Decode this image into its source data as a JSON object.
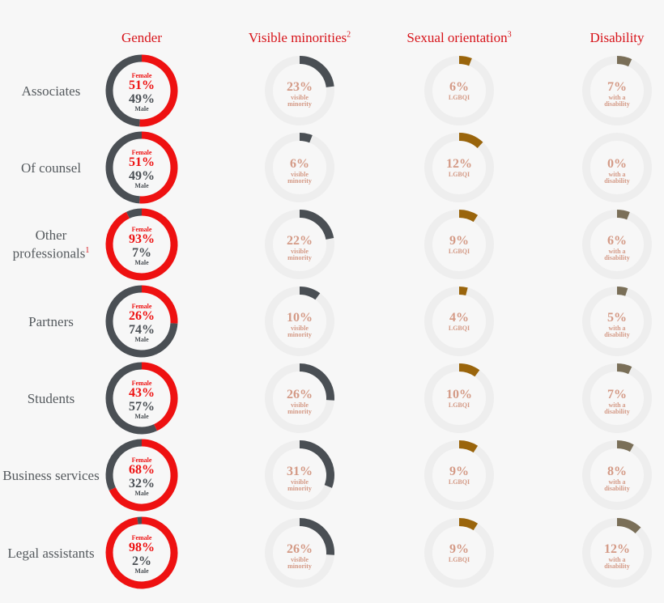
{
  "chart_data": [
    {
      "type": "donut",
      "title": "Gender",
      "title_note": null,
      "ylim": [
        0,
        100
      ],
      "categories": [
        "Associates",
        "Of counsel",
        "Other professionals",
        "Partners",
        "Students",
        "Business services",
        "Legal assistants"
      ],
      "category_notes": [
        null,
        null,
        "1",
        null,
        null,
        null,
        null
      ],
      "series": [
        {
          "name": "Female",
          "color": "#ee1111",
          "values": [
            51,
            51,
            93,
            26,
            43,
            68,
            98
          ],
          "value_labels": [
            "51%",
            "51%",
            "93%",
            "26%",
            "43%",
            "68%",
            "98%"
          ]
        },
        {
          "name": "Male",
          "color": "#4a4f54",
          "values": [
            49,
            49,
            7,
            74,
            57,
            32,
            2
          ],
          "value_labels": [
            "49%",
            "49%",
            "7%",
            "74%",
            "57%",
            "32%",
            "2%"
          ]
        }
      ]
    },
    {
      "type": "donut",
      "title": "Visible minorities",
      "title_note": "2",
      "ylim": [
        0,
        100
      ],
      "series": [
        {
          "name": "visible minority",
          "color": "#4a4f54",
          "values": [
            23,
            6,
            22,
            10,
            26,
            31,
            26
          ],
          "value_labels": [
            "23%",
            "6%",
            "22%",
            "10%",
            "26%",
            "31%",
            "26%"
          ]
        }
      ]
    },
    {
      "type": "donut",
      "title": "Sexual orientation",
      "title_note": "3",
      "ylim": [
        0,
        100
      ],
      "series": [
        {
          "name": "LGBQI",
          "color": "#9a650c",
          "values": [
            6,
            12,
            9,
            4,
            10,
            9,
            9
          ],
          "value_labels": [
            "6%",
            "12%",
            "9%",
            "4%",
            "10%",
            "9%",
            "9%"
          ]
        }
      ]
    },
    {
      "type": "donut",
      "title": "Disability",
      "title_note": null,
      "ylim": [
        0,
        100
      ],
      "series": [
        {
          "name": "with a disability",
          "color": "#7a6f58",
          "values": [
            7,
            0,
            6,
            5,
            7,
            8,
            12
          ],
          "value_labels": [
            "7%",
            "0%",
            "6%",
            "5%",
            "7%",
            "8%",
            "12%"
          ]
        }
      ]
    }
  ]
}
